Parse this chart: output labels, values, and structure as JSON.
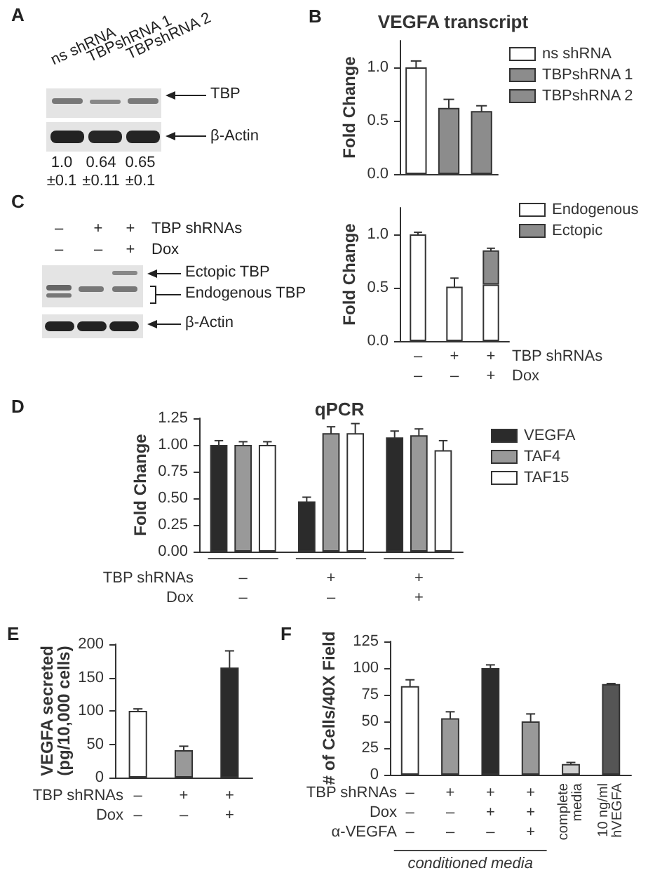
{
  "chart_data": [
    {
      "type": "other",
      "annotations": [
        "A",
        "ns shRNA",
        "TBPshRNA 1",
        "TBPshRNA 2",
        "TBP",
        "β-Actin",
        "1.0\n±0.1",
        "0.64\n±0.11",
        "0.65\n±0.1"
      ]
    },
    {
      "type": "bar",
      "title": "VEGFA transcript",
      "ylabel": "Fold Change",
      "categories": [
        null,
        null,
        null
      ],
      "stacked": true,
      "legend": "right",
      "ylim": [
        0,
        1.25
      ],
      "yticks": [
        {
          "value": 0,
          "label": "0.0"
        },
        {
          "value": 0.5,
          "label": "0.5"
        },
        {
          "value": 1,
          "label": "1.0"
        }
      ],
      "annotations": [
        "B"
      ],
      "series": [
        {
          "name": "ns shRNA",
          "color": "#ffffff",
          "values": [
            1.0,
            null,
            null
          ],
          "errors": [
            0.06,
            null,
            null
          ]
        },
        {
          "name": "TBPshRNA 1",
          "color": "#8c8c8c",
          "values": [
            null,
            0.62,
            null
          ],
          "errors": [
            null,
            0.08,
            null
          ]
        },
        {
          "name": "TBPshRNA 2",
          "color": "#8c8c8c",
          "values": [
            null,
            null,
            0.59
          ],
          "errors": [
            null,
            null,
            0.05
          ]
        }
      ]
    },
    {
      "type": "other",
      "annotations": [
        "C",
        "–",
        "+",
        "+",
        "TBP shRNAs",
        "–",
        "–",
        "+",
        "Dox",
        "Ectopic TBP",
        "Endogenous TBP",
        "β-Actin"
      ]
    },
    {
      "type": "bar",
      "ylabel": "Fold Change",
      "categories": [
        "–\n–",
        "+\n–",
        "+\n+"
      ],
      "stacked": true,
      "legend": "top right",
      "ylim": [
        0,
        1.25
      ],
      "yticks": [
        {
          "value": 0,
          "label": "0.0"
        },
        {
          "value": 0.5,
          "label": "0.5"
        },
        {
          "value": 1,
          "label": "1.0"
        }
      ],
      "annotations": [
        "TBP shRNAs",
        "Dox"
      ],
      "series": [
        {
          "name": "Endogenous",
          "color": "#ffffff",
          "values": [
            1.0,
            0.51,
            0.53
          ],
          "errors": [
            0.02,
            0.08,
            null
          ]
        },
        {
          "name": "Ectopic",
          "color": "#8c8c8c",
          "values": [
            null,
            null,
            0.32
          ],
          "errors": [
            null,
            null,
            0.02
          ]
        }
      ]
    },
    {
      "type": "bar",
      "title": "qPCR",
      "ylabel": "Fold Change",
      "categories": [
        "–\n–",
        "+\n–",
        "+\n+"
      ],
      "legend": "right",
      "ylim": [
        0,
        1.25
      ],
      "yticks": [
        {
          "value": 0,
          "label": "0.00"
        },
        {
          "value": 0.25,
          "label": "0.25"
        },
        {
          "value": 0.5,
          "label": "0.50"
        },
        {
          "value": 0.75,
          "label": "0.75"
        },
        {
          "value": 1,
          "label": "1.00"
        },
        {
          "value": 1.25,
          "label": "1.25"
        }
      ],
      "annotations": [
        "D",
        "TBP shRNAs",
        "Dox"
      ],
      "series": [
        {
          "name": "VEGFA",
          "color": "#2b2b2b",
          "values": [
            1.0,
            0.47,
            1.07
          ],
          "errors": [
            0.04,
            0.04,
            0.06
          ]
        },
        {
          "name": "TAF4",
          "color": "#999999",
          "values": [
            1.0,
            1.11,
            1.09
          ],
          "errors": [
            0.03,
            0.06,
            0.06
          ]
        },
        {
          "name": "TAF15",
          "color": "#ffffff",
          "values": [
            1.0,
            1.11,
            0.95
          ],
          "errors": [
            0.03,
            0.09,
            0.09
          ]
        }
      ]
    },
    {
      "type": "bar",
      "ylabel": "VEGFA secreted\n(pg/10,000 cells)",
      "categories": [
        "–\n–",
        "+\n–",
        "+\n+"
      ],
      "values": [
        100,
        41,
        165
      ],
      "colors": [
        "#ffffff",
        "#999999",
        "#2b2b2b"
      ],
      "errors": [
        3,
        6,
        25
      ],
      "ylim": [
        0,
        200
      ],
      "yticks": [
        0,
        50,
        100,
        150,
        200
      ],
      "annotations": [
        "E",
        "TBP shRNAs",
        "Dox"
      ]
    },
    {
      "type": "bar",
      "ylabel": "# of Cells/40X Field",
      "categories": [
        "–\n–\n–",
        "+\n–\n–",
        "+\n+\n–",
        "+\n+\n+",
        "complete media",
        "10 ng/ml hVEGFA"
      ],
      "values": [
        83,
        53,
        100,
        50,
        10,
        85
      ],
      "colors": [
        "#ffffff",
        "#999999",
        "#2b2b2b",
        "#999999",
        "#d0d0d0",
        "#555555"
      ],
      "errors": [
        6,
        6,
        3,
        7,
        1.5,
        0.5
      ],
      "ylim": [
        0,
        125
      ],
      "yticks": [
        0,
        25,
        50,
        75,
        100,
        125
      ],
      "annotations": [
        "F",
        "TBP shRNAs",
        "Dox",
        "α-VEGFA",
        "conditioned media"
      ]
    }
  ]
}
